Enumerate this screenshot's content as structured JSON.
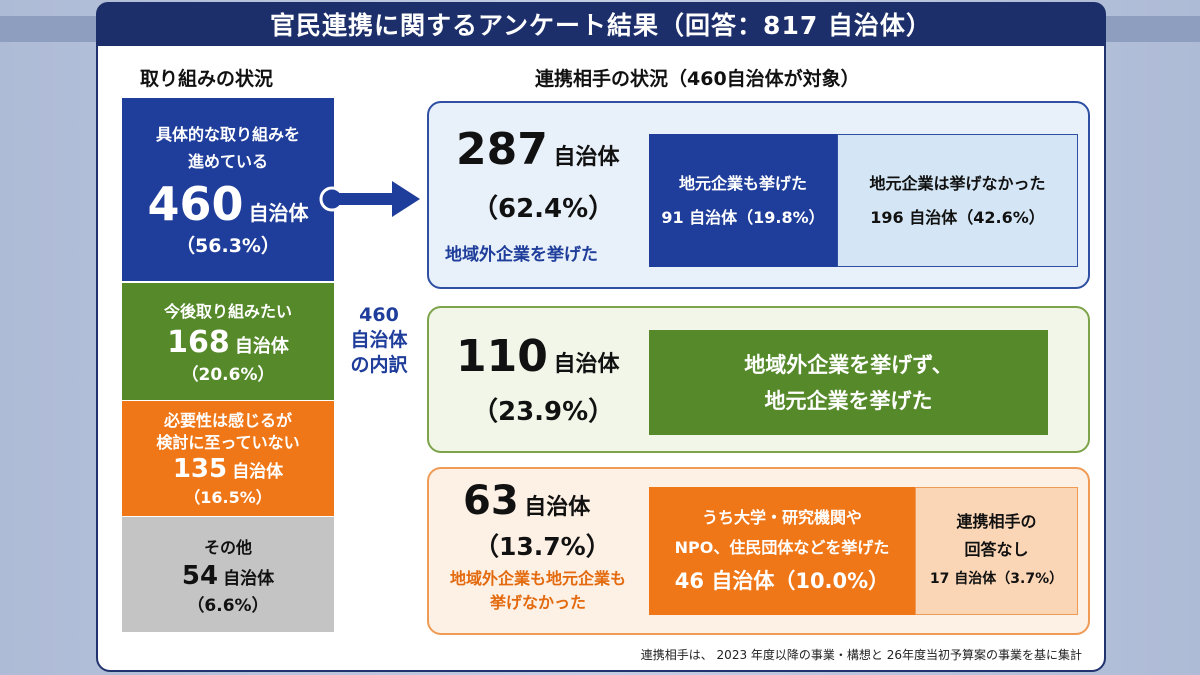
{
  "title": "官民連携に関するアンケート結果（回答：817 自治体）",
  "left_heading": "取り組みの状況",
  "right_heading": "連携相手の状況（460自治体が対象）",
  "breakdown_label": [
    "460",
    "自治体",
    "の内訳"
  ],
  "status_blocks": [
    {
      "lines": [
        "具体的な取り組みを",
        "進めている"
      ],
      "count": "460",
      "unit": "自治体",
      "pct": "（56.3%）",
      "color": "#1f3d9a"
    },
    {
      "lines": [
        "今後取り組みたい"
      ],
      "count": "168",
      "unit": "自治体",
      "pct": "（20.6%）",
      "color": "#55892a"
    },
    {
      "lines": [
        "必要性は感じるが",
        "検討に至っていない"
      ],
      "count": "135",
      "unit": "自治体",
      "pct": "（16.5%）",
      "color": "#f07718"
    },
    {
      "lines": [
        "その他"
      ],
      "count": "54",
      "unit": "自治体",
      "pct": "（6.6%）",
      "color": "#c4c4c4"
    }
  ],
  "partner_panels": {
    "outside": {
      "count": "287",
      "unit": "自治体",
      "pct": "（62.4%）",
      "label": "地域外企業を挙げた",
      "sub_left": {
        "line1": "地元企業も挙げた",
        "line2": "91 自治体（19.8%）"
      },
      "sub_right": {
        "line1": "地元企業は挙げなかった",
        "line2": "196 自治体（42.6%）"
      }
    },
    "local": {
      "count": "110",
      "unit": "自治体",
      "pct": "（23.9%）",
      "box_line1": "地域外企業を挙げず、",
      "box_line2": "地元企業を挙げた"
    },
    "neither": {
      "count": "63",
      "unit": "自治体",
      "pct": "（13.7%）",
      "label_line1": "地域外企業も地元企業も",
      "label_line2": "挙げなかった",
      "sub_left": {
        "line1": "うち大学・研究機関や",
        "line2": "NPO、住民団体などを挙げた",
        "line3": "46 自治体（10.0%）"
      },
      "sub_right": {
        "line1": "連携相手の",
        "line2": "回答なし",
        "line3": "17 自治体（3.7%）"
      }
    }
  },
  "footnote": "連携相手は、 2023 年度以降の事業・構想と 26年度当初予算案の事業を基に集計",
  "colors": {
    "navy": "#1d2f6a",
    "blue": "#1f3d9a",
    "green": "#55892a",
    "orange": "#f07718",
    "gray": "#c4c4c4",
    "panel_blue_bg": "#e8f1fa",
    "panel_green_bg": "#f1f6e8",
    "panel_orange_bg": "#fdf0e4"
  },
  "chart_data": {
    "type": "table",
    "title": "官民連携に関するアンケート結果（回答：817 自治体）",
    "total_respondents": 817,
    "status": [
      {
        "category": "具体的な取り組みを進めている",
        "count": 460,
        "pct": 56.3
      },
      {
        "category": "今後取り組みたい",
        "count": 168,
        "pct": 20.6
      },
      {
        "category": "必要性は感じるが検討に至っていない",
        "count": 135,
        "pct": 16.5
      },
      {
        "category": "その他",
        "count": 54,
        "pct": 6.6
      }
    ],
    "partners_of_460": [
      {
        "category": "地域外企業を挙げた",
        "count": 287,
        "pct": 62.4,
        "breakdown": [
          {
            "category": "地元企業も挙げた",
            "count": 91,
            "pct": 19.8
          },
          {
            "category": "地元企業は挙げなかった",
            "count": 196,
            "pct": 42.6
          }
        ]
      },
      {
        "category": "地域外企業を挙げず、地元企業を挙げた",
        "count": 110,
        "pct": 23.9
      },
      {
        "category": "地域外企業も地元企業も挙げなかった",
        "count": 63,
        "pct": 13.7,
        "breakdown": [
          {
            "category": "うち大学・研究機関やNPO、住民団体などを挙げた",
            "count": 46,
            "pct": 10.0
          },
          {
            "category": "連携相手の回答なし",
            "count": 17,
            "pct": 3.7
          }
        ]
      }
    ]
  }
}
